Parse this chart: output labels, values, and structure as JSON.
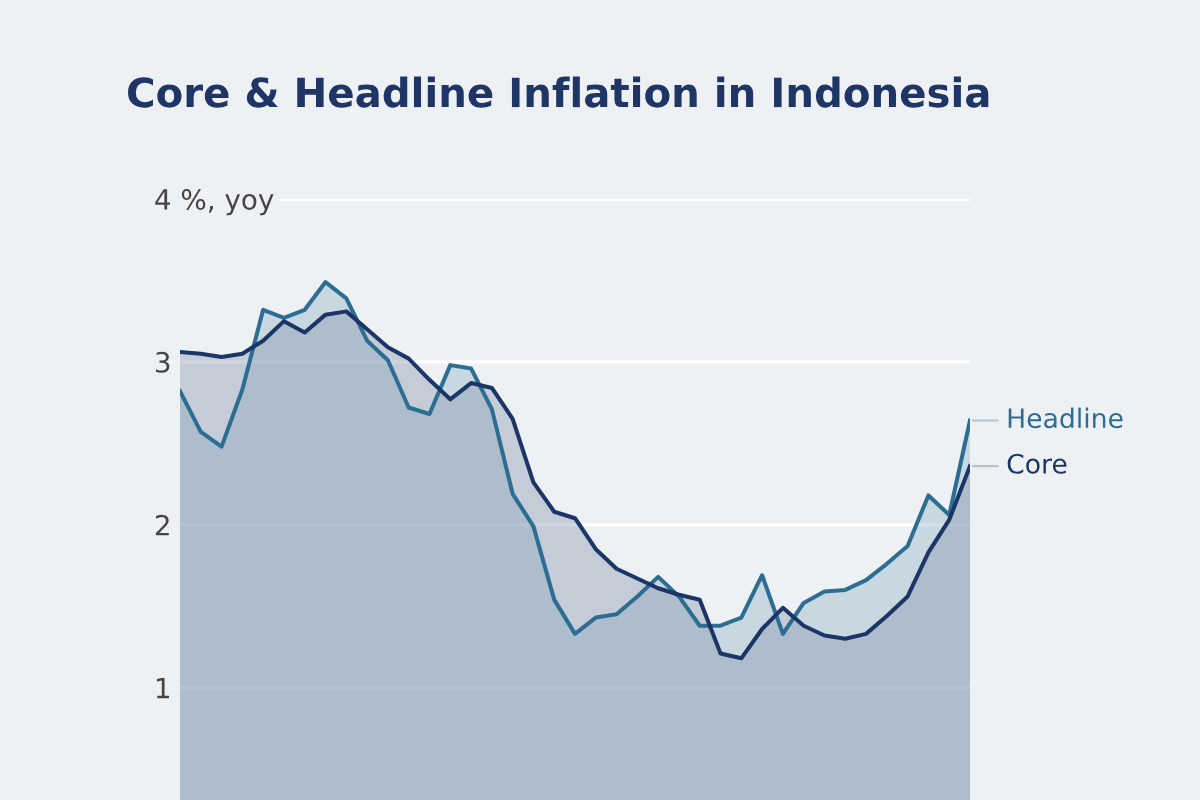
{
  "chart_data": {
    "type": "area",
    "title": "Core & Headline Inflation in Indonesia",
    "categories": [
      null,
      null,
      null,
      null,
      null,
      null,
      null,
      null,
      null,
      null,
      null,
      null,
      null,
      null,
      null,
      null,
      null,
      null,
      null,
      null,
      null,
      null,
      null,
      null,
      null,
      null,
      null,
      null,
      null,
      null,
      null,
      null,
      null,
      null,
      null,
      null,
      null,
      null,
      null
    ],
    "series": [
      {
        "name": "Headline",
        "color": "#2e6d92",
        "values": [
          2.82,
          2.57,
          2.48,
          2.83,
          3.32,
          3.27,
          3.32,
          3.49,
          3.39,
          3.13,
          3.01,
          2.72,
          2.68,
          2.98,
          2.96,
          2.71,
          2.19,
          1.99,
          1.54,
          1.33,
          1.43,
          1.45,
          1.56,
          1.68,
          1.56,
          1.38,
          1.38,
          1.43,
          1.69,
          1.33,
          1.52,
          1.59,
          1.6,
          1.66,
          1.76,
          1.87,
          2.18,
          2.06,
          2.64
        ]
      },
      {
        "name": "Core",
        "color": "#1b3566",
        "values": [
          3.06,
          3.05,
          3.03,
          3.05,
          3.13,
          3.25,
          3.18,
          3.29,
          3.31,
          3.2,
          3.09,
          3.02,
          2.89,
          2.77,
          2.87,
          2.84,
          2.65,
          2.26,
          2.08,
          2.04,
          1.85,
          1.73,
          1.67,
          1.61,
          1.57,
          1.54,
          1.21,
          1.18,
          1.36,
          1.49,
          1.38,
          1.32,
          1.3,
          1.33,
          1.44,
          1.56,
          1.83,
          2.03,
          2.36
        ]
      }
    ],
    "ylim": [
      0.31,
      4
    ],
    "yticks": [
      1,
      2,
      3,
      {
        "value": 4,
        "label": "4 %, yoy"
      }
    ],
    "grid": "y",
    "tick_labels": "y"
  }
}
